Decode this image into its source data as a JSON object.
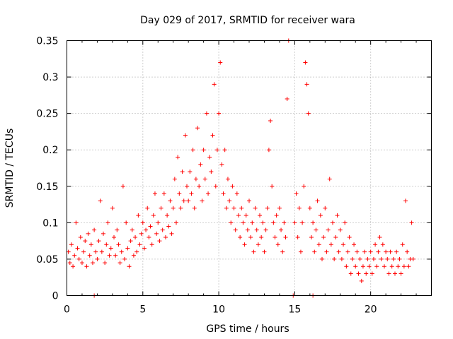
{
  "chart_data": {
    "type": "scatter",
    "title": "Day 029 of 2017, SRMTID for receiver wara",
    "xlabel": "GPS time / hours",
    "ylabel": "SRMTID / TECUs",
    "xlim": [
      0,
      24
    ],
    "ylim": [
      0,
      0.35
    ],
    "x_ticks": [
      0,
      5,
      10,
      15,
      20
    ],
    "x_tick_labels": [
      "0",
      "5",
      "10",
      "15",
      "20"
    ],
    "y_ticks": [
      0,
      0.05,
      0.1,
      0.15,
      0.2,
      0.25,
      0.3,
      0.35
    ],
    "y_tick_labels": [
      "0",
      "0.05",
      "0.1",
      "0.15",
      "0.2",
      "0.25",
      "0.3",
      "0.35"
    ],
    "grid": true,
    "marker": "plus",
    "marker_color": "#ff0000",
    "series": [
      {
        "name": "SRMTID",
        "points": [
          [
            0.1,
            0.06
          ],
          [
            0.2,
            0.045
          ],
          [
            0.3,
            0.07
          ],
          [
            0.4,
            0.04
          ],
          [
            0.5,
            0.055
          ],
          [
            0.6,
            0.1
          ],
          [
            0.7,
            0.065
          ],
          [
            0.8,
            0.05
          ],
          [
            0.9,
            0.08
          ],
          [
            1.0,
            0.045
          ],
          [
            1.1,
            0.06
          ],
          [
            1.2,
            0.075
          ],
          [
            1.3,
            0.04
          ],
          [
            1.4,
            0.085
          ],
          [
            1.5,
            0.055
          ],
          [
            1.6,
            0.07
          ],
          [
            1.7,
            0.045
          ],
          [
            1.8,
            0.09
          ],
          [
            1.9,
            0.06
          ],
          [
            2.0,
            0.05
          ],
          [
            2.1,
            0.075
          ],
          [
            2.2,
            0.13
          ],
          [
            2.3,
            0.06
          ],
          [
            2.4,
            0.085
          ],
          [
            2.5,
            0.045
          ],
          [
            2.6,
            0.07
          ],
          [
            2.7,
            0.1
          ],
          [
            2.8,
            0.055
          ],
          [
            2.9,
            0.065
          ],
          [
            3.0,
            0.12
          ],
          [
            3.1,
            0.08
          ],
          [
            3.2,
            0.055
          ],
          [
            3.3,
            0.09
          ],
          [
            3.4,
            0.07
          ],
          [
            3.5,
            0.045
          ],
          [
            3.6,
            0.06
          ],
          [
            3.7,
            0.15
          ],
          [
            3.8,
            0.05
          ],
          [
            3.9,
            0.1
          ],
          [
            4.0,
            0.065
          ],
          [
            4.1,
            0.04
          ],
          [
            4.2,
            0.075
          ],
          [
            4.3,
            0.09
          ],
          [
            4.4,
            0.055
          ],
          [
            4.5,
            0.08
          ],
          [
            4.6,
            0.06
          ],
          [
            4.7,
            0.11
          ],
          [
            4.8,
            0.07
          ],
          [
            4.9,
            0.085
          ],
          [
            5.0,
            0.1
          ],
          [
            5.1,
            0.065
          ],
          [
            5.2,
            0.09
          ],
          [
            5.3,
            0.12
          ],
          [
            5.4,
            0.08
          ],
          [
            5.5,
            0.095
          ],
          [
            5.6,
            0.07
          ],
          [
            5.7,
            0.11
          ],
          [
            5.8,
            0.14
          ],
          [
            5.9,
            0.085
          ],
          [
            6.0,
            0.1
          ],
          [
            6.1,
            0.075
          ],
          [
            6.2,
            0.12
          ],
          [
            6.3,
            0.09
          ],
          [
            6.4,
            0.14
          ],
          [
            6.5,
            0.08
          ],
          [
            6.6,
            0.11
          ],
          [
            6.7,
            0.095
          ],
          [
            6.8,
            0.13
          ],
          [
            6.9,
            0.085
          ],
          [
            7.0,
            0.12
          ],
          [
            7.1,
            0.16
          ],
          [
            7.2,
            0.1
          ],
          [
            7.3,
            0.19
          ],
          [
            7.4,
            0.14
          ],
          [
            7.5,
            0.12
          ],
          [
            7.6,
            0.17
          ],
          [
            7.7,
            0.13
          ],
          [
            7.8,
            0.22
          ],
          [
            7.9,
            0.15
          ],
          [
            8.0,
            0.13
          ],
          [
            8.1,
            0.17
          ],
          [
            8.2,
            0.14
          ],
          [
            8.3,
            0.2
          ],
          [
            8.4,
            0.12
          ],
          [
            8.5,
            0.16
          ],
          [
            8.6,
            0.23
          ],
          [
            8.7,
            0.15
          ],
          [
            8.8,
            0.18
          ],
          [
            8.9,
            0.13
          ],
          [
            9.0,
            0.2
          ],
          [
            9.1,
            0.16
          ],
          [
            9.2,
            0.25
          ],
          [
            9.3,
            0.14
          ],
          [
            9.4,
            0.19
          ],
          [
            9.5,
            0.17
          ],
          [
            9.6,
            0.22
          ],
          [
            9.7,
            0.29
          ],
          [
            9.8,
            0.15
          ],
          [
            9.9,
            0.2
          ],
          [
            10.0,
            0.25
          ],
          [
            10.1,
            0.32
          ],
          [
            10.2,
            0.18
          ],
          [
            10.3,
            0.14
          ],
          [
            10.4,
            0.2
          ],
          [
            10.5,
            0.12
          ],
          [
            10.6,
            0.16
          ],
          [
            10.7,
            0.13
          ],
          [
            10.8,
            0.1
          ],
          [
            10.9,
            0.15
          ],
          [
            11.0,
            0.12
          ],
          [
            11.1,
            0.09
          ],
          [
            11.2,
            0.14
          ],
          [
            11.3,
            0.11
          ],
          [
            11.4,
            0.08
          ],
          [
            11.5,
            0.12
          ],
          [
            11.6,
            0.1
          ],
          [
            11.7,
            0.07
          ],
          [
            11.8,
            0.11
          ],
          [
            11.9,
            0.09
          ],
          [
            12.0,
            0.13
          ],
          [
            12.1,
            0.08
          ],
          [
            12.2,
            0.1
          ],
          [
            12.3,
            0.06
          ],
          [
            12.4,
            0.12
          ],
          [
            12.5,
            0.09
          ],
          [
            12.6,
            0.07
          ],
          [
            12.7,
            0.11
          ],
          [
            12.8,
            0.08
          ],
          [
            12.9,
            0.1
          ],
          [
            13.0,
            0.06
          ],
          [
            13.1,
            0.09
          ],
          [
            13.2,
            0.12
          ],
          [
            13.3,
            0.2
          ],
          [
            13.4,
            0.24
          ],
          [
            13.5,
            0.15
          ],
          [
            13.6,
            0.1
          ],
          [
            13.7,
            0.08
          ],
          [
            13.8,
            0.11
          ],
          [
            13.9,
            0.07
          ],
          [
            14.0,
            0.12
          ],
          [
            14.1,
            0.09
          ],
          [
            14.2,
            0.06
          ],
          [
            14.3,
            0.1
          ],
          [
            14.4,
            0.08
          ],
          [
            14.5,
            0.27
          ],
          [
            14.6,
            0.35
          ],
          [
            15.0,
            0.1
          ],
          [
            15.1,
            0.14
          ],
          [
            15.2,
            0.08
          ],
          [
            15.3,
            0.12
          ],
          [
            15.4,
            0.06
          ],
          [
            15.5,
            0.1
          ],
          [
            15.6,
            0.15
          ],
          [
            15.7,
            0.32
          ],
          [
            15.8,
            0.29
          ],
          [
            15.9,
            0.25
          ],
          [
            16.0,
            0.12
          ],
          [
            16.1,
            0.08
          ],
          [
            16.2,
            0.1
          ],
          [
            16.3,
            0.06
          ],
          [
            16.4,
            0.09
          ],
          [
            16.5,
            0.13
          ],
          [
            16.6,
            0.07
          ],
          [
            16.7,
            0.11
          ],
          [
            16.8,
            0.05
          ],
          [
            16.9,
            0.08
          ],
          [
            17.0,
            0.12
          ],
          [
            17.1,
            0.06
          ],
          [
            17.2,
            0.09
          ],
          [
            17.3,
            0.16
          ],
          [
            17.4,
            0.07
          ],
          [
            17.5,
            0.1
          ],
          [
            17.6,
            0.05
          ],
          [
            17.7,
            0.08
          ],
          [
            17.8,
            0.11
          ],
          [
            17.9,
            0.06
          ],
          [
            18.0,
            0.09
          ],
          [
            18.1,
            0.05
          ],
          [
            18.2,
            0.07
          ],
          [
            18.3,
            0.1
          ],
          [
            18.4,
            0.04
          ],
          [
            18.5,
            0.06
          ],
          [
            18.6,
            0.08
          ],
          [
            18.7,
            0.03
          ],
          [
            18.8,
            0.05
          ],
          [
            18.9,
            0.07
          ],
          [
            19.0,
            0.04
          ],
          [
            19.1,
            0.06
          ],
          [
            19.2,
            0.03
          ],
          [
            19.3,
            0.05
          ],
          [
            19.4,
            0.02
          ],
          [
            19.5,
            0.04
          ],
          [
            19.6,
            0.06
          ],
          [
            19.7,
            0.03
          ],
          [
            19.8,
            0.05
          ],
          [
            19.9,
            0.04
          ],
          [
            20.0,
            0.06
          ],
          [
            20.1,
            0.03
          ],
          [
            20.2,
            0.05
          ],
          [
            20.3,
            0.07
          ],
          [
            20.4,
            0.04
          ],
          [
            20.5,
            0.06
          ],
          [
            20.6,
            0.08
          ],
          [
            20.7,
            0.05
          ],
          [
            20.8,
            0.07
          ],
          [
            20.9,
            0.04
          ],
          [
            21.0,
            0.06
          ],
          [
            21.1,
            0.05
          ],
          [
            21.2,
            0.03
          ],
          [
            21.3,
            0.06
          ],
          [
            21.4,
            0.04
          ],
          [
            21.5,
            0.05
          ],
          [
            21.6,
            0.03
          ],
          [
            21.7,
            0.06
          ],
          [
            21.8,
            0.04
          ],
          [
            21.9,
            0.05
          ],
          [
            22.0,
            0.03
          ],
          [
            22.1,
            0.07
          ],
          [
            22.2,
            0.04
          ],
          [
            22.3,
            0.13
          ],
          [
            22.4,
            0.06
          ],
          [
            22.5,
            0.04
          ],
          [
            22.6,
            0.05
          ],
          [
            22.7,
            0.1
          ],
          [
            22.8,
            0.05
          ],
          [
            1.8,
            0.0
          ],
          [
            14.9,
            0.0
          ],
          [
            16.2,
            0.0
          ]
        ]
      }
    ]
  }
}
